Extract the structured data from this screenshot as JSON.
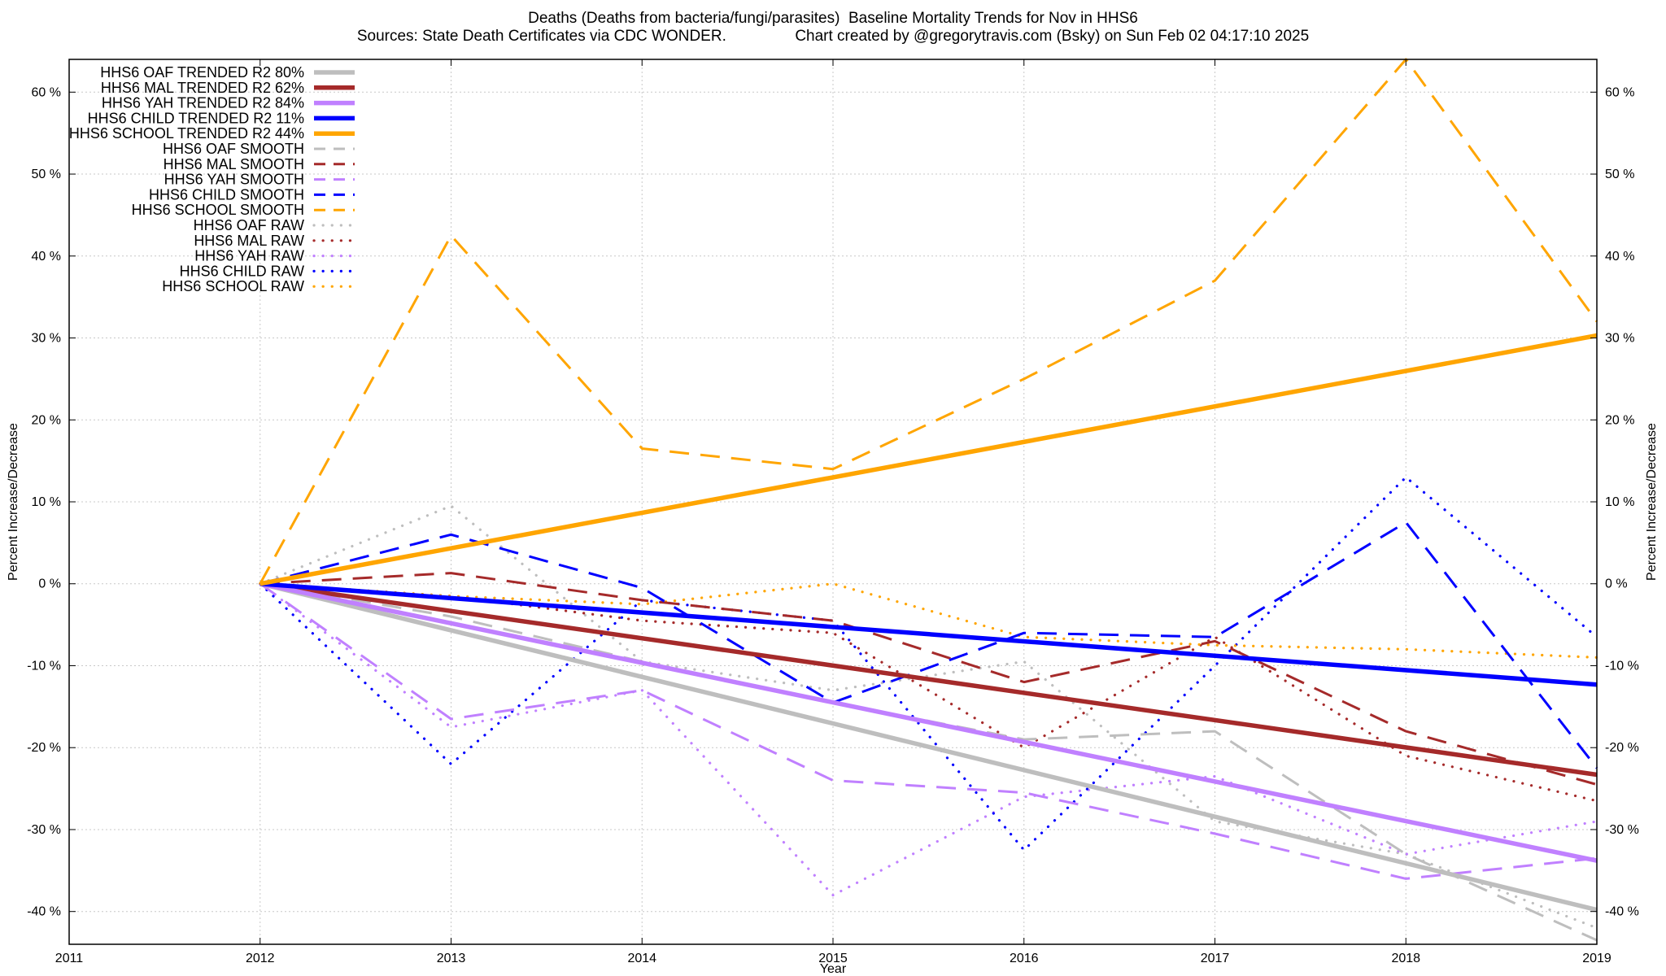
{
  "header": {
    "title_line1": "Deaths (Deaths from bacteria/fungi/parasites)  Baseline Mortality Trends for Nov in HHS6",
    "title_line2": "Sources: State Death Certificates via CDC WONDER.                Chart created by @gregorytravis.com (Bsky) on Sun Feb 02 04:17:10 2025"
  },
  "chart_data": {
    "type": "line",
    "title": "Deaths (Deaths from bacteria/fungi/parasites)  Baseline Mortality Trends for Nov in HHS6",
    "subtitle": "Sources: State Death Certificates via CDC WONDER.                Chart created by @gregorytravis.com (Bsky) on Sun Feb 02 04:17:10 2025",
    "xlabel": "Year",
    "ylabel": "Percent Increase/Decrease",
    "y2label": "Percent Increase/Decrease",
    "xlim": [
      2011,
      2019
    ],
    "ylim": [
      -44,
      64
    ],
    "x_ticks": [
      "2011",
      "2012",
      "2013",
      "2014",
      "2015",
      "2016",
      "2017",
      "2018",
      "2019"
    ],
    "y_ticks": [
      {
        "v": 60,
        "label": "60 %"
      },
      {
        "v": 50,
        "label": "50 %"
      },
      {
        "v": 40,
        "label": "40 %"
      },
      {
        "v": 30,
        "label": "30 %"
      },
      {
        "v": 20,
        "label": "20 %"
      },
      {
        "v": 10,
        "label": "10 %"
      },
      {
        "v": 0,
        "label": "0 %"
      },
      {
        "v": -10,
        "label": "-10 %"
      },
      {
        "v": -20,
        "label": "-20 %"
      },
      {
        "v": -30,
        "label": "-30 %"
      },
      {
        "v": -40,
        "label": "-40 %"
      }
    ],
    "grid": true,
    "legend_position": "top-left",
    "series": [
      {
        "name": "HHS6 OAF TRENDED R2  80%",
        "style": "trend",
        "color": "#bebebe",
        "x": [
          2012,
          2019
        ],
        "y": [
          0,
          -39.8
        ]
      },
      {
        "name": "HHS6 MAL TRENDED R2  62%",
        "style": "trend",
        "color": "#a52a2a",
        "x": [
          2012,
          2019
        ],
        "y": [
          0,
          -23.3
        ]
      },
      {
        "name": "HHS6 YAH TRENDED R2  84%",
        "style": "trend",
        "color": "#c080ff",
        "x": [
          2012,
          2019
        ],
        "y": [
          0,
          -33.8
        ]
      },
      {
        "name": "HHS6 CHILD TRENDED R2  11%",
        "style": "trend",
        "color": "#0000ff",
        "x": [
          2012,
          2019
        ],
        "y": [
          0,
          -12.3
        ]
      },
      {
        "name": "HHS6 SCHOOL TRENDED R2  44%",
        "style": "trend",
        "color": "#ffa500",
        "x": [
          2012,
          2019
        ],
        "y": [
          0,
          30.3
        ]
      },
      {
        "name": "HHS6 OAF SMOOTH",
        "style": "smooth",
        "color": "#bebebe",
        "x": [
          2012,
          2013,
          2014,
          2015,
          2016,
          2017,
          2018,
          2019
        ],
        "y": [
          0,
          -4,
          -9.5,
          -14.5,
          -19,
          -18,
          -33,
          -43.5
        ]
      },
      {
        "name": "HHS6 MAL SMOOTH",
        "style": "smooth",
        "color": "#a52a2a",
        "x": [
          2012,
          2013,
          2014,
          2015,
          2016,
          2017,
          2018,
          2019
        ],
        "y": [
          0,
          1.3,
          -2,
          -4.5,
          -12,
          -7,
          -18,
          -24.5
        ]
      },
      {
        "name": "HHS6 YAH SMOOTH",
        "style": "smooth",
        "color": "#c080ff",
        "x": [
          2012,
          2013,
          2014,
          2015,
          2016,
          2017,
          2018,
          2019
        ],
        "y": [
          0,
          -16.5,
          -13,
          -24,
          -25.5,
          -30.5,
          -36,
          -33.5
        ]
      },
      {
        "name": "HHS6 CHILD SMOOTH",
        "style": "smooth",
        "color": "#0000ff",
        "x": [
          2012,
          2013,
          2014,
          2015,
          2016,
          2017,
          2018,
          2019
        ],
        "y": [
          0,
          6,
          -0.5,
          -14.5,
          -6,
          -6.5,
          7.5,
          -22.5
        ]
      },
      {
        "name": "HHS6 SCHOOL SMOOTH",
        "style": "smooth",
        "color": "#ffa500",
        "x": [
          2012,
          2013,
          2014,
          2015,
          2016,
          2017,
          2018,
          2019
        ],
        "y": [
          0,
          42.5,
          16.5,
          14,
          25,
          37,
          64,
          32
        ]
      },
      {
        "name": "HHS6 OAF RAW",
        "style": "raw",
        "color": "#bebebe",
        "x": [
          2012,
          2013,
          2014,
          2015,
          2016,
          2017,
          2018,
          2019
        ],
        "y": [
          0,
          9.5,
          -9.5,
          -13,
          -9.5,
          -29,
          -33,
          -42
        ]
      },
      {
        "name": "HHS6 MAL RAW",
        "style": "raw",
        "color": "#a52a2a",
        "x": [
          2012,
          2013,
          2014,
          2015,
          2016,
          2017,
          2018,
          2019
        ],
        "y": [
          0,
          -1.5,
          -4.5,
          -6,
          -20,
          -6.5,
          -21,
          -26.5
        ]
      },
      {
        "name": "HHS6 YAH RAW",
        "style": "raw",
        "color": "#c080ff",
        "x": [
          2012,
          2013,
          2014,
          2015,
          2016,
          2017,
          2018,
          2019
        ],
        "y": [
          0,
          -17.5,
          -13,
          -38,
          -26,
          -23.5,
          -33,
          -29
        ]
      },
      {
        "name": "HHS6 CHILD RAW",
        "style": "raw",
        "color": "#0000ff",
        "x": [
          2012,
          2013,
          2014,
          2015,
          2016,
          2017,
          2018,
          2019
        ],
        "y": [
          0,
          -22,
          -2,
          -4.5,
          -32.5,
          -10,
          13,
          -6.5
        ]
      },
      {
        "name": "HHS6 SCHOOL RAW",
        "style": "raw",
        "color": "#ffa500",
        "x": [
          2012,
          2013,
          2014,
          2015,
          2016,
          2017,
          2018,
          2019
        ],
        "y": [
          0,
          -1.5,
          -2.5,
          0,
          -6.5,
          -7.5,
          -8,
          -9
        ]
      }
    ]
  }
}
